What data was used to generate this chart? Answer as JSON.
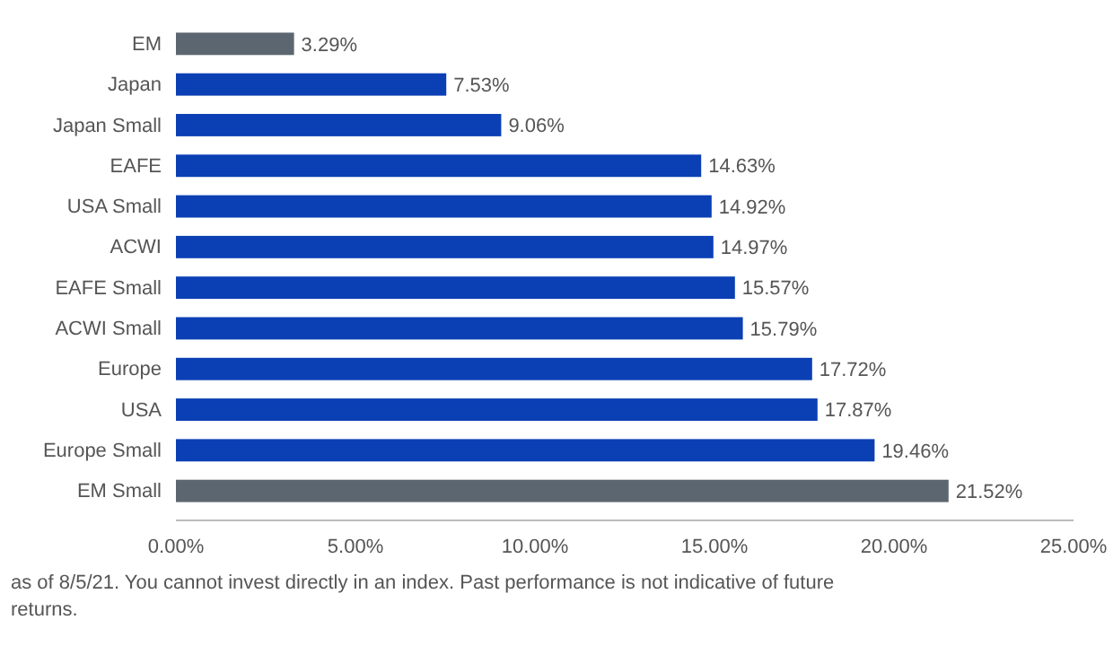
{
  "chart_data": {
    "type": "bar",
    "orientation": "horizontal",
    "categories": [
      "EM",
      "Japan",
      "Japan Small",
      "EAFE",
      "USA Small",
      "ACWI",
      "EAFE Small",
      "ACWI Small",
      "Europe",
      "USA",
      "Europe Small",
      "EM Small"
    ],
    "values": [
      3.29,
      7.53,
      9.06,
      14.63,
      14.92,
      14.97,
      15.57,
      15.79,
      17.72,
      17.87,
      19.46,
      21.52
    ],
    "value_labels": [
      "3.29%",
      "7.53%",
      "9.06%",
      "14.63%",
      "14.92%",
      "14.97%",
      "15.57%",
      "15.79%",
      "17.72%",
      "17.87%",
      "19.46%",
      "21.52%"
    ],
    "colors": [
      "#5b6670",
      "#0b3fb4",
      "#0b3fb4",
      "#0b3fb4",
      "#0b3fb4",
      "#0b3fb4",
      "#0b3fb4",
      "#0b3fb4",
      "#0b3fb4",
      "#0b3fb4",
      "#0b3fb4",
      "#5b6670"
    ],
    "xlim": [
      0,
      25
    ],
    "xticks": [
      {
        "value": 0,
        "label": "0.00%"
      },
      {
        "value": 5,
        "label": "5.00%"
      },
      {
        "value": 10,
        "label": "10.00%"
      },
      {
        "value": 15,
        "label": "15.00%"
      },
      {
        "value": 20,
        "label": "20.00%"
      },
      {
        "value": 25,
        "label": "25.00%"
      }
    ],
    "grid": false,
    "annotations": [
      "as of 8/5/21. You cannot invest directly in an index. Past performance is not indicative of future returns."
    ]
  }
}
